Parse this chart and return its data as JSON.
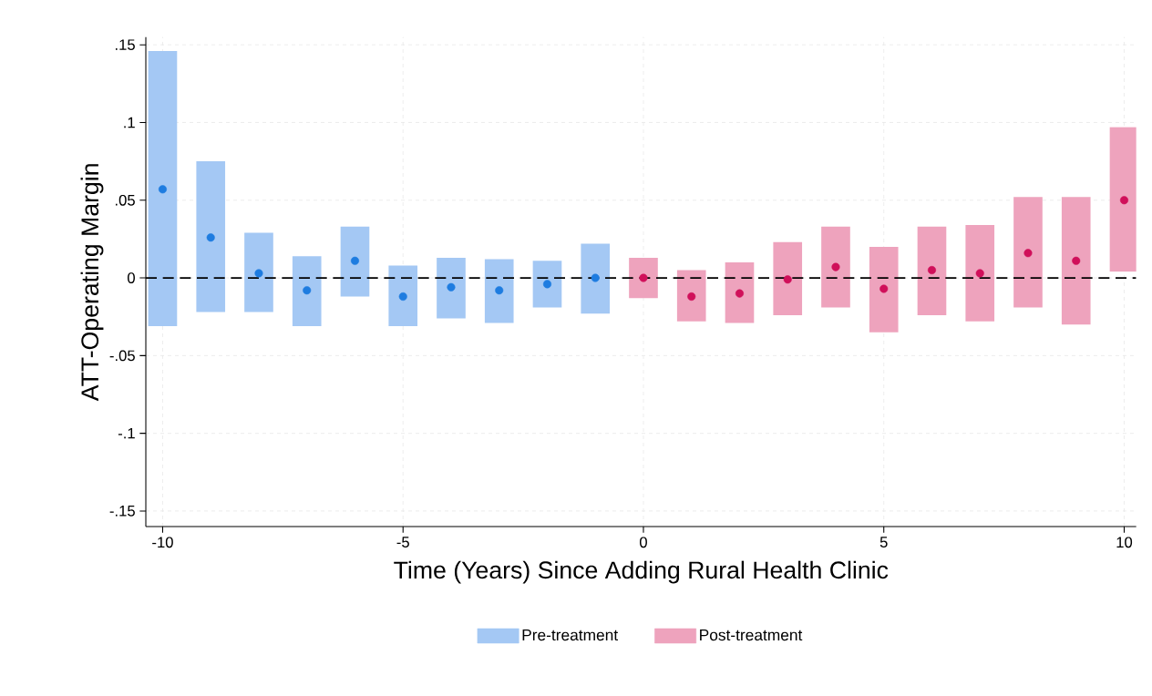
{
  "chart_data": {
    "type": "bar",
    "xlabel": "Time (Years) Since Adding Rural Health Clinic",
    "ylabel": "ATT-Operating Margin",
    "xlim": [
      -10.35,
      10.25
    ],
    "ylim": [
      -0.16,
      0.155
    ],
    "xticks": [
      -10,
      -5,
      0,
      5,
      10
    ],
    "yticks": [
      {
        "value": -0.15,
        "label": "-.15"
      },
      {
        "value": -0.1,
        "label": "-.1"
      },
      {
        "value": -0.05,
        "label": "-.05"
      },
      0,
      {
        "value": 0.05,
        "label": ".05"
      },
      {
        "value": 0.1,
        "label": ".1"
      },
      {
        "value": 0.15,
        "label": ".15"
      }
    ],
    "grid": true,
    "legend": "bottom",
    "ref_lines": [
      {
        "axis": "y",
        "value": 0,
        "color": "#000000",
        "line_style": "dashed"
      }
    ],
    "series": [
      {
        "name": "Pre-treatment",
        "color": "#a4c8f4",
        "x": [
          -10,
          -9,
          -8,
          -7,
          -6,
          -5,
          -4,
          -3,
          -2,
          -1
        ],
        "base": [
          -0.031,
          -0.022,
          -0.022,
          -0.031,
          -0.012,
          -0.031,
          -0.026,
          -0.029,
          -0.019,
          -0.023
        ],
        "values": [
          0.177,
          0.097,
          0.051,
          0.045,
          0.045,
          0.039,
          0.039,
          0.041,
          0.03,
          0.045
        ]
      },
      {
        "name": "Post-treatment",
        "color": "#eea3bd",
        "x": [
          0,
          1,
          2,
          3,
          4,
          5,
          6,
          7,
          8,
          9,
          10
        ],
        "base": [
          -0.013,
          -0.028,
          -0.029,
          -0.024,
          -0.019,
          -0.035,
          -0.024,
          -0.028,
          -0.019,
          -0.03,
          0.004
        ],
        "values": [
          0.026,
          0.033,
          0.039,
          0.047,
          0.052,
          0.055,
          0.057,
          0.062,
          0.071,
          0.082,
          0.093
        ]
      },
      {
        "type": "scatter",
        "color": "#1e7ce0",
        "x": [
          -10,
          -9,
          -8,
          -7,
          -6,
          -5,
          -4,
          -3,
          -2,
          -1
        ],
        "values": [
          0.057,
          0.026,
          0.003,
          -0.008,
          0.011,
          -0.012,
          -0.006,
          -0.008,
          -0.004,
          0.0
        ]
      },
      {
        "type": "scatter",
        "color": "#d0105a",
        "x": [
          0,
          1,
          2,
          3,
          4,
          5,
          6,
          7,
          8,
          9,
          10
        ],
        "values": [
          0.0,
          -0.012,
          -0.01,
          -0.001,
          0.007,
          -0.007,
          0.005,
          0.003,
          0.016,
          0.011,
          0.05
        ]
      }
    ]
  }
}
